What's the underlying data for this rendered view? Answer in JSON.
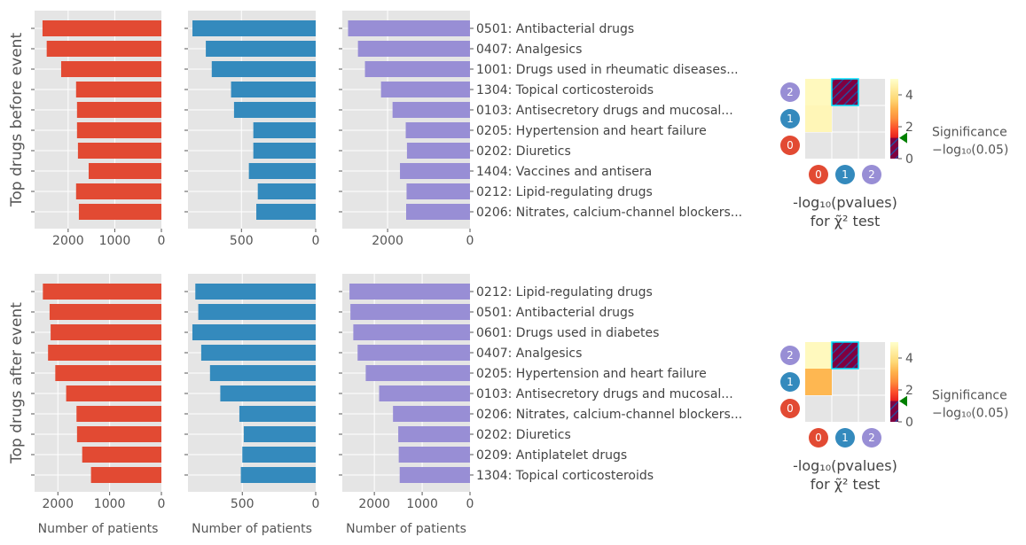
{
  "colors": {
    "cohort0": "#e24a33",
    "cohort1": "#348abd",
    "cohort2": "#988ed5",
    "panel_bg": "#e5e5e5",
    "grid": "#ffffff",
    "sig_marker": "#008000",
    "hatch_bg": "#800040",
    "hatch_line": "#2a4a9a",
    "hatch_edge": "#00e5ff"
  },
  "figure_labels": {
    "xlabel": "Number of patients",
    "heatmap_title_line1": "-log₁₀(pvalues)",
    "heatmap_title_line2": "for χ̃² test",
    "significance_line1": "Significance",
    "significance_line2": "−log₁₀(0.05)"
  },
  "chart_data": [
    {
      "type": "bar",
      "orientation": "horizontal",
      "ylabel": "Top drugs before event",
      "categories": [
        "0501: Antibacterial drugs",
        "0407: Analgesics",
        "1001: Drugs used in rheumatic diseases...",
        "1304: Topical corticosteroids",
        "0103: Antisecretory drugs and mucosal...",
        "0205: Hypertension and heart failure",
        "0202: Diuretics",
        "1404: Vaccines and antisera",
        "0212: Lipid-regulating drugs",
        "0206: Nitrates, calcium-channel blockers..."
      ],
      "series": [
        {
          "values": [
            2550,
            2460,
            2150,
            1830,
            1810,
            1810,
            1790,
            1560,
            1830,
            1770
          ],
          "xlim": [
            2720,
            0
          ],
          "xticks": [
            2000,
            1000,
            0
          ],
          "xticklabels": [
            "2000",
            "1000",
            "0"
          ]
        },
        {
          "values": [
            830,
            740,
            700,
            570,
            550,
            420,
            420,
            450,
            390,
            400
          ],
          "xlim": [
            860,
            0
          ],
          "xticks": [
            500,
            0
          ],
          "xticklabels": [
            "500",
            "0"
          ]
        },
        {
          "values": [
            2960,
            2720,
            2550,
            2160,
            1880,
            1560,
            1530,
            1700,
            1540,
            1550
          ],
          "xlim": [
            3100,
            0
          ],
          "xticks": [
            2000,
            0
          ],
          "xticklabels": [
            "2000",
            "0"
          ]
        }
      ],
      "heatmap": {
        "cells": [
          [
            null,
            null,
            null
          ],
          [
            4.7,
            null,
            null
          ],
          [
            4.8,
            "hatched",
            null
          ]
        ],
        "colorbar_range": [
          0,
          5
        ],
        "colorbar_ticks": [
          "0",
          "2",
          "4"
        ],
        "significance_threshold": 1.301,
        "row_labels": [
          "0",
          "1",
          "2"
        ],
        "col_labels": [
          "0",
          "1",
          "2"
        ]
      }
    },
    {
      "type": "bar",
      "orientation": "horizontal",
      "ylabel": "Top drugs after event",
      "categories": [
        "0212: Lipid-regulating drugs",
        "0501: Antibacterial drugs",
        "0601: Drugs used in diabetes",
        "0407: Analgesics",
        "0205: Hypertension and heart failure",
        "0103: Antisecretory drugs and mucosal...",
        "0206: Nitrates, calcium-channel blockers...",
        "0202: Diuretics",
        "0209: Antiplatelet drugs",
        "1304: Topical corticosteroids"
      ],
      "series": [
        {
          "values": [
            2290,
            2160,
            2140,
            2190,
            2050,
            1840,
            1640,
            1630,
            1530,
            1360
          ],
          "xlim": [
            2450,
            0
          ],
          "xticks": [
            2000,
            1000,
            0
          ],
          "xticklabels": [
            "2000",
            "1000",
            "0"
          ]
        },
        {
          "values": [
            820,
            800,
            840,
            780,
            720,
            650,
            520,
            490,
            500,
            510
          ],
          "xlim": [
            870,
            0
          ],
          "xticks": [
            500,
            0
          ],
          "xticklabels": [
            "500",
            "0"
          ]
        },
        {
          "values": [
            2520,
            2500,
            2440,
            2350,
            2180,
            1900,
            1610,
            1500,
            1490,
            1470
          ],
          "xlim": [
            2670,
            0
          ],
          "xticks": [
            2000,
            1000,
            0
          ],
          "xticklabels": [
            "2000",
            "1000",
            "0"
          ]
        }
      ],
      "heatmap": {
        "cells": [
          [
            null,
            null,
            null
          ],
          [
            3.2,
            null,
            null
          ],
          [
            4.8,
            "hatched",
            null
          ]
        ],
        "colorbar_range": [
          0,
          5
        ],
        "colorbar_ticks": [
          "0",
          "2",
          "4"
        ],
        "significance_threshold": 1.301,
        "row_labels": [
          "0",
          "1",
          "2"
        ],
        "col_labels": [
          "0",
          "1",
          "2"
        ]
      }
    }
  ]
}
